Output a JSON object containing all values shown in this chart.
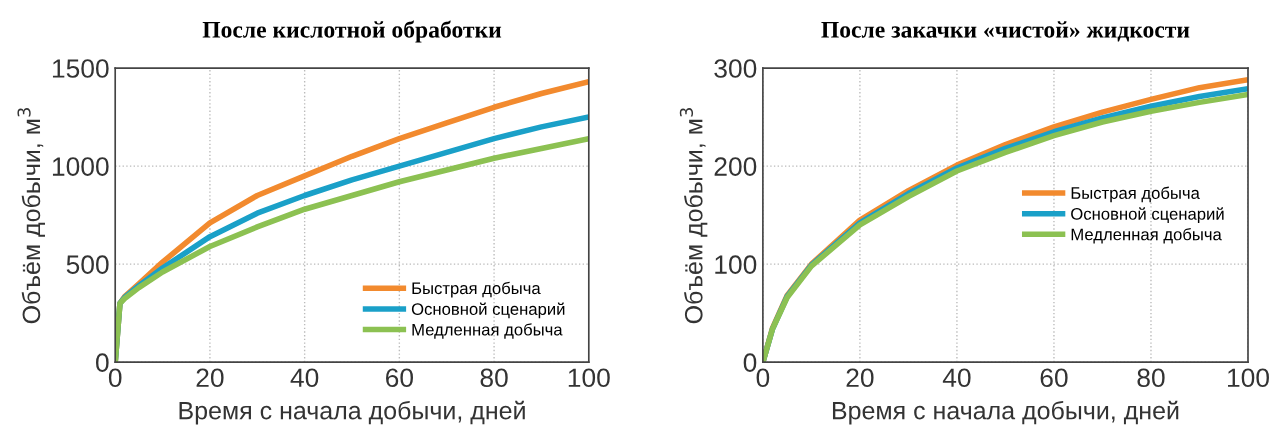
{
  "chart_data": [
    {
      "type": "line",
      "title": "После кислотной обработки",
      "xlabel": "Время с начала добычи, дней",
      "ylabel": "Объём добычи, м$^{3}$",
      "x": [
        0,
        1,
        2,
        5,
        10,
        20,
        30,
        40,
        50,
        60,
        70,
        80,
        90,
        100
      ],
      "series": [
        {
          "name": "Быстрая добыча",
          "color": "#f28a2e",
          "values": [
            0,
            300,
            335,
            400,
            510,
            710,
            850,
            950,
            1050,
            1140,
            1220,
            1300,
            1370,
            1430
          ]
        },
        {
          "name": "Основной сценарий",
          "color": "#1aa0c8",
          "values": [
            0,
            300,
            330,
            390,
            480,
            640,
            760,
            850,
            930,
            1000,
            1070,
            1140,
            1200,
            1250
          ]
        },
        {
          "name": "Медленная добыча",
          "color": "#8cc152",
          "values": [
            0,
            300,
            325,
            380,
            460,
            590,
            690,
            780,
            850,
            920,
            980,
            1040,
            1090,
            1140
          ]
        }
      ],
      "xlim": [
        0,
        100
      ],
      "ylim": [
        0,
        1500
      ],
      "xticks": [
        0,
        20,
        40,
        60,
        80,
        100
      ],
      "yticks": [
        0,
        500,
        1000,
        1500
      ],
      "grid": true,
      "legend": "bottom right"
    },
    {
      "type": "line",
      "title": "После закачки «чистой» жидкости",
      "xlabel": "Время с начала добычи, дней",
      "ylabel": "Объём добычи, м$^{3}$",
      "x": [
        0,
        2,
        5,
        10,
        20,
        30,
        40,
        50,
        60,
        70,
        80,
        90,
        100
      ],
      "series": [
        {
          "name": "Быстрая добыча",
          "color": "#f28a2e",
          "values": [
            0,
            35,
            68,
            100,
            145,
            175,
            201,
            222,
            240,
            255,
            268,
            280,
            288
          ]
        },
        {
          "name": "Основной сценарий",
          "color": "#1aa0c8",
          "values": [
            0,
            34,
            67,
            99,
            142,
            172,
            198,
            218,
            235,
            249,
            261,
            271,
            279
          ]
        },
        {
          "name": "Медленная добыча",
          "color": "#8cc152",
          "values": [
            0,
            34,
            66,
            98,
            140,
            169,
            195,
            214,
            231,
            245,
            256,
            265,
            273
          ]
        }
      ],
      "xlim": [
        0,
        100
      ],
      "ylim": [
        0,
        300
      ],
      "xticks": [
        0,
        20,
        40,
        60,
        80,
        100
      ],
      "yticks": [
        0,
        100,
        200,
        300
      ],
      "grid": true,
      "legend": "center right"
    }
  ]
}
